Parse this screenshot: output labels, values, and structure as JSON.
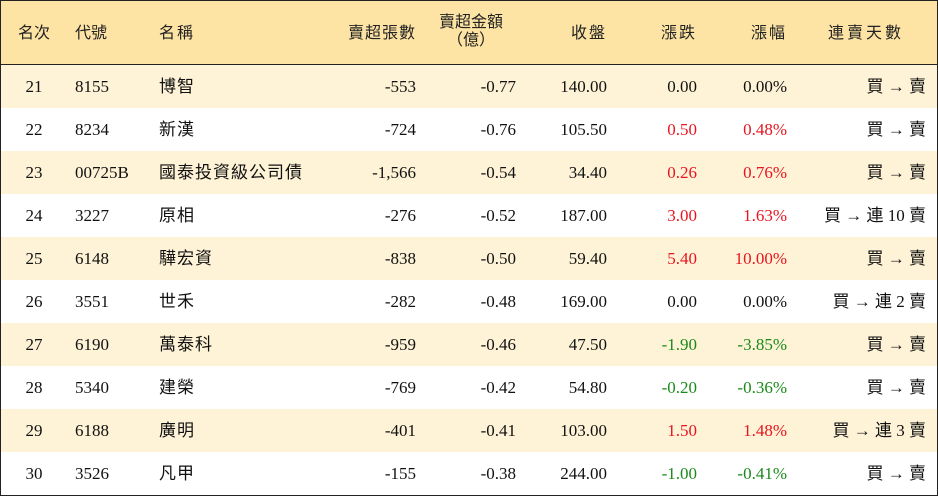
{
  "headers": {
    "rank": "名次",
    "code": "代號",
    "name": "名稱",
    "volume": "賣超張數",
    "amount_line1": "賣超金額",
    "amount_line2": "（億）",
    "close": "收盤",
    "change": "漲跌",
    "pct": "漲幅",
    "streak": "連賣天數"
  },
  "colors": {
    "header_bg": "#fde4a4",
    "stripe_bg": "#fef3d6",
    "up": "#e8141e",
    "down": "#1a8a1a"
  },
  "rows": [
    {
      "rank": "21",
      "code": "8155",
      "name": "博智",
      "volume": "-553",
      "amount": "-0.77",
      "close": "140.00",
      "change": "0.00",
      "pct": "0.00%",
      "streak": "買 → 賣",
      "trend": "flat"
    },
    {
      "rank": "22",
      "code": "8234",
      "name": "新漢",
      "volume": "-724",
      "amount": "-0.76",
      "close": "105.50",
      "change": "0.50",
      "pct": "0.48%",
      "streak": "買 → 賣",
      "trend": "up"
    },
    {
      "rank": "23",
      "code": "00725B",
      "name": "國泰投資級公司債",
      "volume": "-1,566",
      "amount": "-0.54",
      "close": "34.40",
      "change": "0.26",
      "pct": "0.76%",
      "streak": "買 → 賣",
      "trend": "up"
    },
    {
      "rank": "24",
      "code": "3227",
      "name": "原相",
      "volume": "-276",
      "amount": "-0.52",
      "close": "187.00",
      "change": "3.00",
      "pct": "1.63%",
      "streak": "買 → 連 10 賣",
      "trend": "up"
    },
    {
      "rank": "25",
      "code": "6148",
      "name": "驊宏資",
      "volume": "-838",
      "amount": "-0.50",
      "close": "59.40",
      "change": "5.40",
      "pct": "10.00%",
      "streak": "買 → 賣",
      "trend": "up"
    },
    {
      "rank": "26",
      "code": "3551",
      "name": "世禾",
      "volume": "-282",
      "amount": "-0.48",
      "close": "169.00",
      "change": "0.00",
      "pct": "0.00%",
      "streak": "買 → 連 2 賣",
      "trend": "flat"
    },
    {
      "rank": "27",
      "code": "6190",
      "name": "萬泰科",
      "volume": "-959",
      "amount": "-0.46",
      "close": "47.50",
      "change": "-1.90",
      "pct": "-3.85%",
      "streak": "買 → 賣",
      "trend": "down"
    },
    {
      "rank": "28",
      "code": "5340",
      "name": "建榮",
      "volume": "-769",
      "amount": "-0.42",
      "close": "54.80",
      "change": "-0.20",
      "pct": "-0.36%",
      "streak": "買 → 賣",
      "trend": "down"
    },
    {
      "rank": "29",
      "code": "6188",
      "name": "廣明",
      "volume": "-401",
      "amount": "-0.41",
      "close": "103.00",
      "change": "1.50",
      "pct": "1.48%",
      "streak": "買 → 連 3 賣",
      "trend": "up"
    },
    {
      "rank": "30",
      "code": "3526",
      "name": "凡甲",
      "volume": "-155",
      "amount": "-0.38",
      "close": "244.00",
      "change": "-1.00",
      "pct": "-0.41%",
      "streak": "買 → 賣",
      "trend": "down"
    }
  ]
}
